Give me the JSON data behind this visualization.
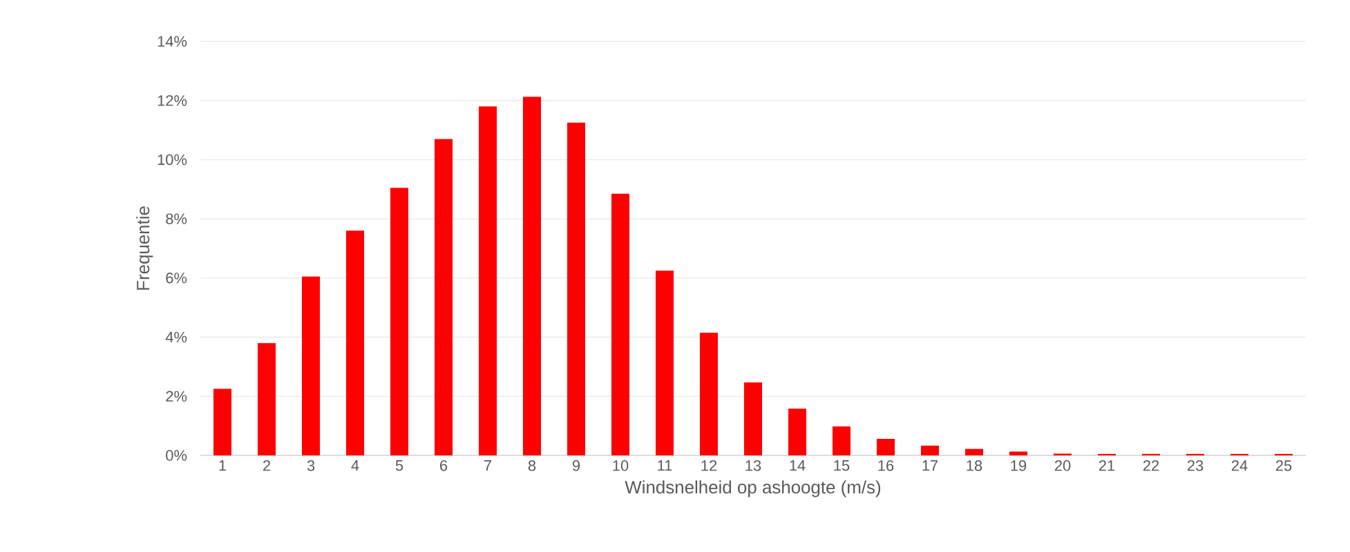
{
  "chart_data": {
    "type": "bar",
    "xlabel": "Windsnelheid op ashoogte (m/s)",
    "ylabel": "Frequentie",
    "categories": [
      "1",
      "2",
      "3",
      "4",
      "5",
      "6",
      "7",
      "8",
      "9",
      "10",
      "11",
      "12",
      "13",
      "14",
      "15",
      "16",
      "17",
      "18",
      "19",
      "20",
      "21",
      "22",
      "23",
      "24",
      "25"
    ],
    "values": [
      0.0225,
      0.038,
      0.0605,
      0.076,
      0.0905,
      0.107,
      0.118,
      0.1213,
      0.1125,
      0.0885,
      0.0625,
      0.0415,
      0.0247,
      0.0158,
      0.0098,
      0.0056,
      0.0033,
      0.0022,
      0.0013,
      0.0006,
      0.0005,
      0.0005,
      0.0005,
      0.0005,
      0.0005
    ],
    "color": "#ff0000",
    "ylim": [
      0,
      0.14
    ],
    "yticks": [
      {
        "value": 0,
        "label": "0%"
      },
      {
        "value": 0.02,
        "label": "2%"
      },
      {
        "value": 0.04,
        "label": "4%"
      },
      {
        "value": 0.06,
        "label": "6%"
      },
      {
        "value": 0.08,
        "label": "8%"
      },
      {
        "value": 0.1,
        "label": "10%"
      },
      {
        "value": 0.12,
        "label": "12%"
      },
      {
        "value": 0.14,
        "label": "14%"
      }
    ],
    "grid": "y"
  }
}
